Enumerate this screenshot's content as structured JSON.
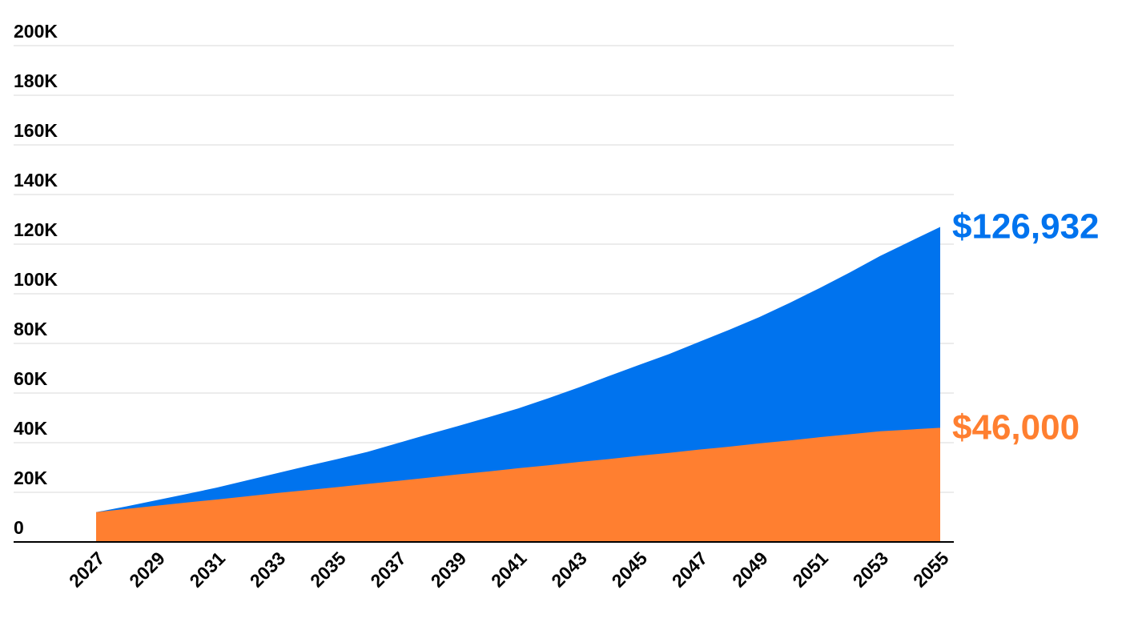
{
  "chart_data": {
    "type": "area",
    "x": [
      2027,
      2028,
      2029,
      2030,
      2031,
      2032,
      2033,
      2034,
      2035,
      2036,
      2037,
      2038,
      2039,
      2040,
      2041,
      2042,
      2043,
      2044,
      2045,
      2046,
      2047,
      2048,
      2049,
      2050,
      2051,
      2052,
      2053,
      2054,
      2055
    ],
    "x_tick_labels": [
      "2027",
      "2029",
      "2031",
      "2033",
      "2035",
      "2037",
      "2039",
      "2041",
      "2043",
      "2045",
      "2047",
      "2049",
      "2051",
      "2053",
      "2055"
    ],
    "y_tick_labels": [
      "0",
      "20K",
      "40K",
      "60K",
      "80K",
      "100K",
      "120K",
      "140K",
      "160K",
      "180K",
      "200K"
    ],
    "ylim": [
      0,
      200000
    ],
    "grid": true,
    "series": [
      {
        "color": "#0073EE",
        "end_label": "$126,932",
        "values": [
          12000,
          14300,
          16800,
          19300,
          21900,
          24800,
          27700,
          30600,
          33400,
          36300,
          39800,
          43300,
          46700,
          50200,
          53800,
          57900,
          62200,
          66800,
          71300,
          75700,
          80600,
          85500,
          90600,
          96300,
          102300,
          108600,
          115200,
          121100,
          126932
        ]
      },
      {
        "color": "#FF7F30",
        "end_label": "$46,000",
        "values": [
          12000,
          13300,
          14600,
          15900,
          17100,
          18400,
          19700,
          20900,
          22100,
          23400,
          24600,
          25900,
          27200,
          28400,
          29700,
          30900,
          32200,
          33400,
          34700,
          35900,
          37200,
          38400,
          39700,
          40900,
          42200,
          43400,
          44600,
          45300,
          46000
        ]
      }
    ]
  }
}
